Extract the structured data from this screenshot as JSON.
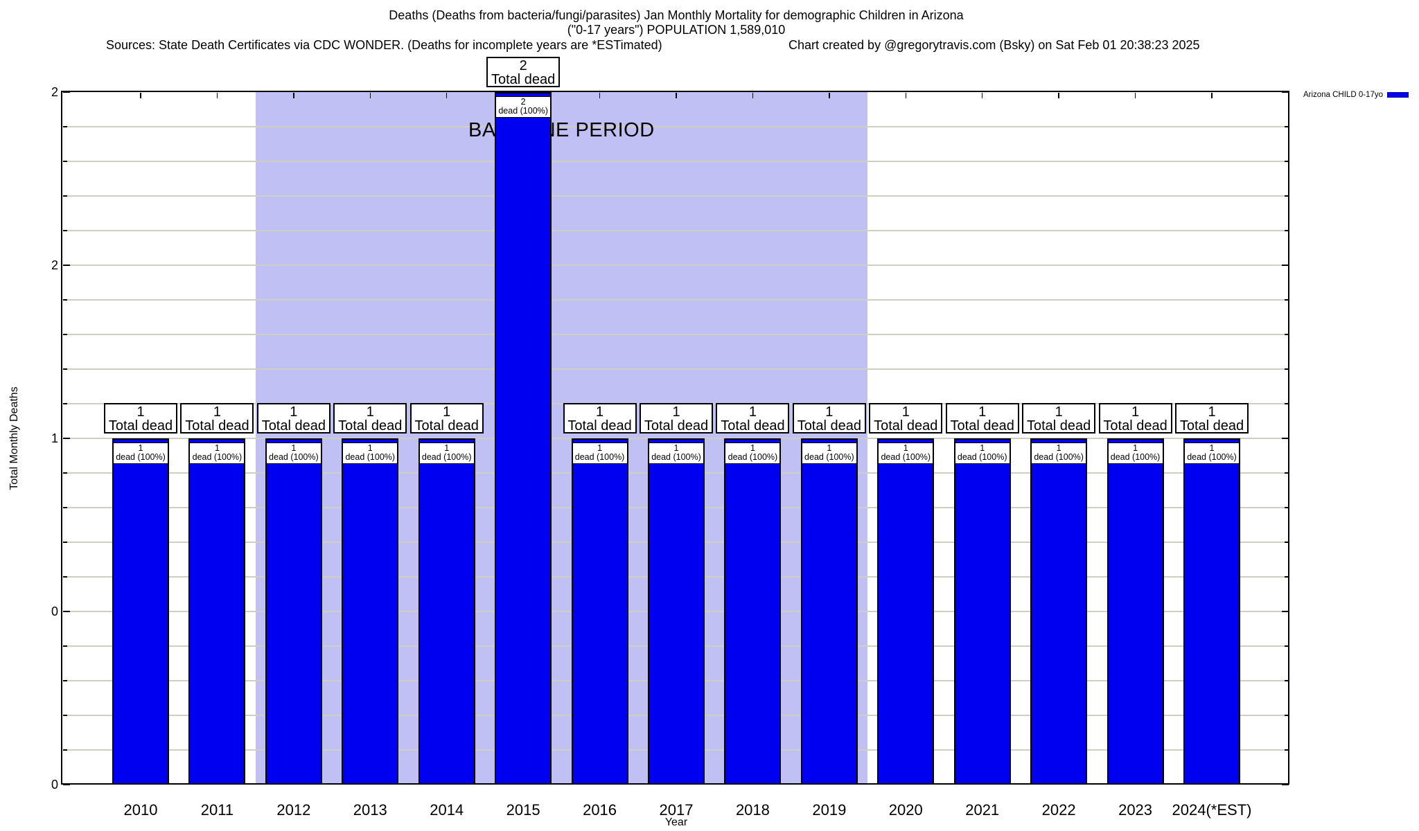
{
  "title": {
    "line1": "Deaths (Deaths from bacteria/fungi/parasites) Jan Monthly Mortality for demographic Children in Arizona",
    "line2": "(\"0-17 years\") POPULATION 1,589,010",
    "sources": "Sources: State Death Certificates via CDC WONDER. (Deaths for incomplete years are *ESTimated)",
    "credit": "Chart created by @gregorytravis.com (Bsky) on Sat Feb 01 20:38:23 2025"
  },
  "legend": {
    "label": "Arizona CHILD 0-17yo",
    "swatch_color": "#0000f0"
  },
  "axes": {
    "y_title": "Total Monthly Deaths",
    "x_title": "Year",
    "y_ticks": [
      {
        "value": 2.0,
        "label": "2"
      },
      {
        "value": 1.5,
        "label": "2"
      },
      {
        "value": 1.0,
        "label": "1"
      },
      {
        "value": 0.5,
        "label": "0"
      },
      {
        "value": 0.0,
        "label": "0"
      }
    ]
  },
  "baseline_band": {
    "label": "BASELINE PERIOD",
    "from_category": "2012",
    "to_category": "2019",
    "color": "#c0c0f5"
  },
  "chart_data": {
    "type": "bar",
    "title": "Deaths (Deaths from bacteria/fungi/parasites) Jan Monthly Mortality for demographic Children in Arizona (\"0-17 years\") POPULATION 1,589,010",
    "xlabel": "Year",
    "ylabel": "Total Monthly Deaths",
    "ylim": [
      0,
      2
    ],
    "grid": true,
    "grid_step": 0.1,
    "legend_position": "top-right",
    "categories": [
      "2010",
      "2011",
      "2012",
      "2013",
      "2014",
      "2015",
      "2016",
      "2017",
      "2018",
      "2019",
      "2020",
      "2021",
      "2022",
      "2023",
      "2024(*EST)"
    ],
    "series": [
      {
        "name": "Arizona CHILD 0-17yo",
        "values": [
          1,
          1,
          1,
          1,
          1,
          2,
          1,
          1,
          1,
          1,
          1,
          1,
          1,
          1,
          1
        ]
      }
    ],
    "bar_color": "#0000f0",
    "bar_top_label_suffix": "Total dead",
    "bar_inner_label_suffix": "dead (100%)",
    "annotations": [
      "BASELINE PERIOD"
    ]
  }
}
